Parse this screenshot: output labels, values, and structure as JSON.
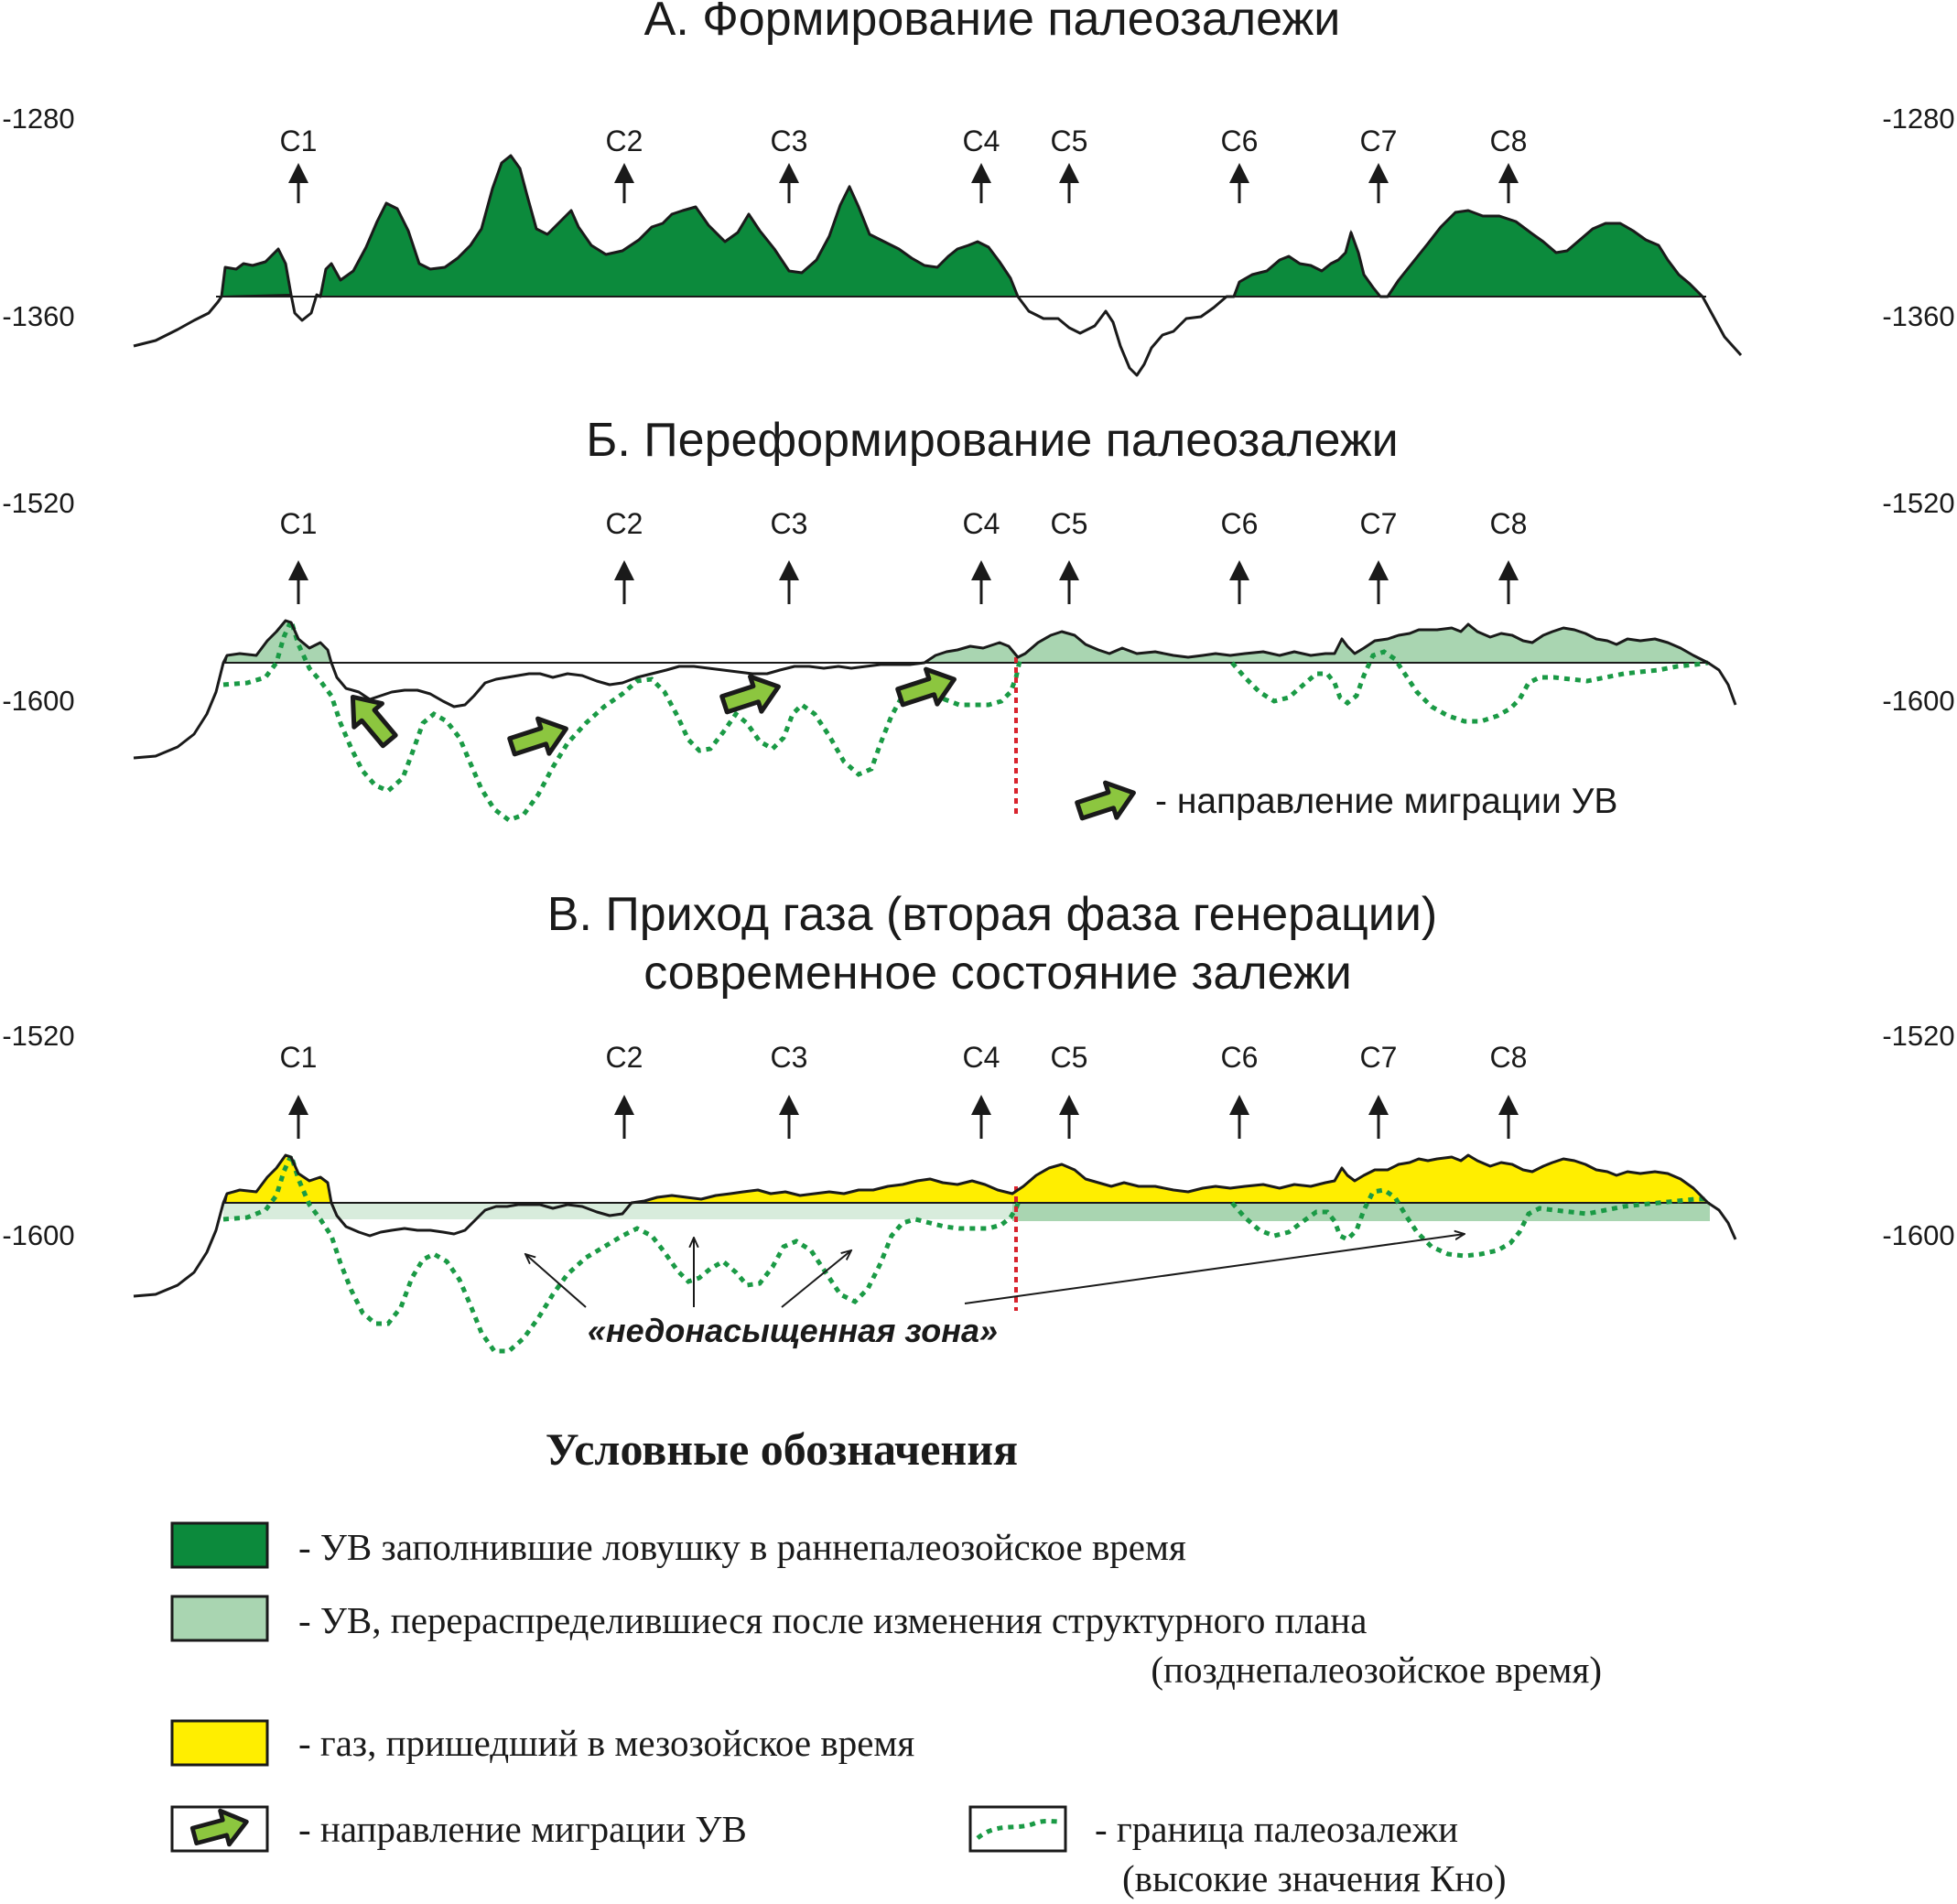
{
  "panels": [
    {
      "title_lines": [
        "А. Формирование палеозалежи"
      ],
      "depth_top": "-1280",
      "depth_bottom": "-1360"
    },
    {
      "title_lines": [
        "Б. Переформирование палеозалежи"
      ],
      "depth_top": "-1520",
      "depth_bottom": "-1600",
      "migration_note": "- направление миграции УВ"
    },
    {
      "title_lines": [
        "В. Приход газа (вторая фаза генерации)",
        "современное состояние залежи"
      ],
      "depth_top": "-1520",
      "depth_bottom": "-1600",
      "zone_label": "«недонасыщенная зона»"
    }
  ],
  "wells": [
    "C1",
    "C2",
    "C3",
    "C4",
    "C5",
    "C6",
    "C7",
    "C8"
  ],
  "legend": {
    "title": "Условные обозначения",
    "items": [
      {
        "lines": [
          "- УВ заполнившие ловушку в раннепалеозойское время"
        ],
        "swatch": "dark-green"
      },
      {
        "lines": [
          "- УВ, перераспределившиеся после изменения структурного плана",
          "(позднепалеозойское время)"
        ],
        "swatch": "light-green"
      },
      {
        "lines": [
          "- газ, пришедший в мезозойское время"
        ],
        "swatch": "yellow"
      },
      {
        "lines": [
          "- направление миграции УВ"
        ],
        "swatch": "arrow"
      },
      {
        "lines": [
          "- граница палеозалежи",
          "(высокие значения Кно)"
        ],
        "swatch": "dotted-line"
      }
    ]
  },
  "colors": {
    "early_hc": "#0c8a3c",
    "redistributed_hc": "#a9d5b1",
    "gas": "#ffee00",
    "arrow_fill": "#8cc63f",
    "boundary_line": "#1a9a45",
    "gwc_marker": "#d9232d",
    "line": "#1a1a1a"
  }
}
